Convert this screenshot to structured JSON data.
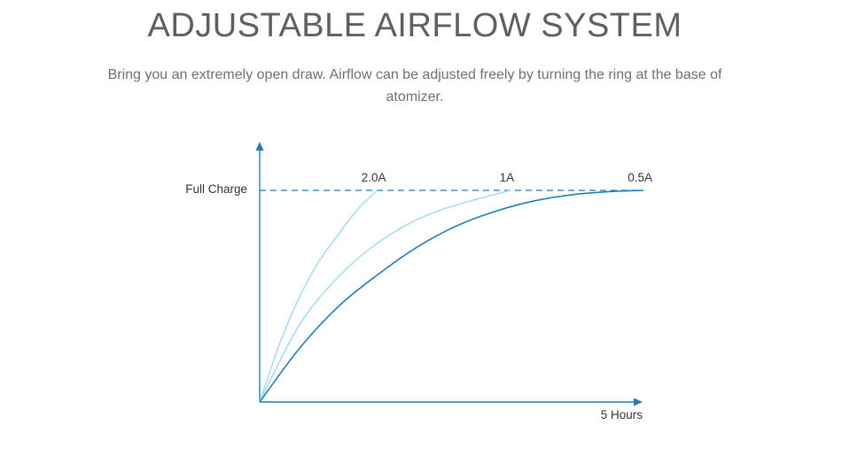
{
  "page": {
    "title": "ADJUSTABLE AIRFLOW SYSTEM",
    "subtitle": "Bring you an extremely open draw. Airflow can be adjusted freely by turning the ring at the base of atomizer."
  },
  "chart_data": {
    "type": "line",
    "title": "",
    "ylabel": "",
    "xlabel": "",
    "y_reference": {
      "label": "Full Charge",
      "value": 1.0,
      "style": "dashed"
    },
    "x_end_label": "5 Hours",
    "xlim": [
      0,
      5
    ],
    "ylim": [
      0,
      1.2
    ],
    "grid": false,
    "series": [
      {
        "name": "2.0A",
        "color": "#a9dcef",
        "x": [
          0,
          0.25,
          0.5,
          0.75,
          1.0,
          1.25,
          1.5
        ],
        "y": [
          0,
          0.27,
          0.49,
          0.66,
          0.79,
          0.91,
          1.0
        ]
      },
      {
        "name": "1A",
        "color": "#a9dcef",
        "x": [
          0,
          0.5,
          1.0,
          1.5,
          2.0,
          2.5,
          3.2
        ],
        "y": [
          0,
          0.36,
          0.59,
          0.75,
          0.86,
          0.93,
          1.0
        ]
      },
      {
        "name": "0.5A",
        "color": "#1f7fb2",
        "x": [
          0,
          0.5,
          1.0,
          1.5,
          2.0,
          2.5,
          3.0,
          3.5,
          4.0,
          4.5,
          4.9
        ],
        "y": [
          0,
          0.25,
          0.45,
          0.6,
          0.73,
          0.83,
          0.9,
          0.95,
          0.98,
          0.995,
          1.0
        ]
      }
    ],
    "colors": {
      "axis": "#1f7fb2",
      "reference_line": "#1f7fb2",
      "text": "#333333"
    }
  }
}
